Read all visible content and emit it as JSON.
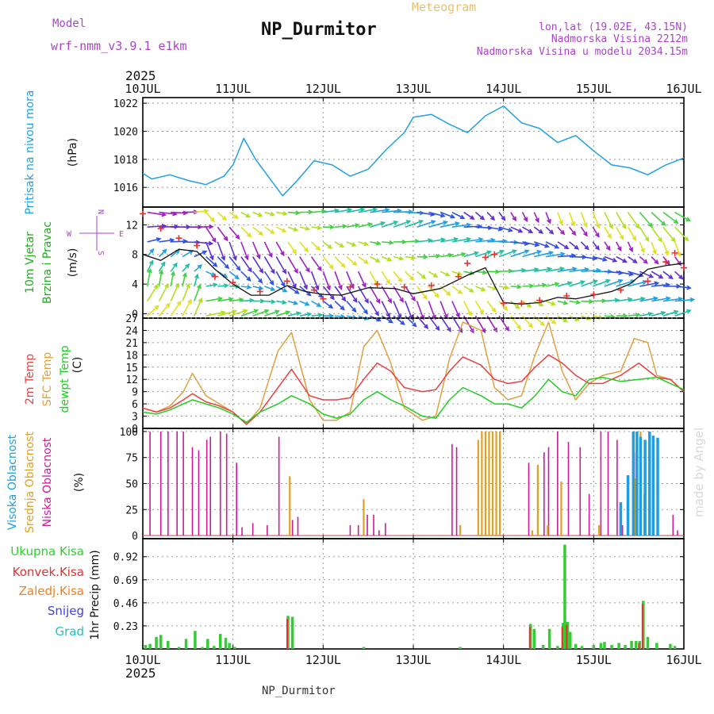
{
  "header": {
    "model_label": "Model",
    "model_name": "wrf-nmm_v3.9.1 e1km",
    "product": "Meteogram",
    "station": "NP_Durmitor",
    "lonlat": "lon,lat (19.02E, 43.15N)",
    "altitude": "Nadmorska Visina 2212m",
    "model_altitude": "Nadmorska Visina u modelu 2034.15m",
    "year": "2025",
    "footer_station": "NP_Durmitor",
    "credit": "made by Angel"
  },
  "colors": {
    "pressure": "#1ea0e6",
    "precip": "#33cc33",
    "convective": "#e83030",
    "frozen": "#f08020",
    "snow": "#4040e0",
    "hail": "#20c0c0",
    "low_cloud": "#cc1a99",
    "mid_cloud": "#e0a020",
    "high_cloud": "#1e9ee0",
    "temp_2m": "#e84040",
    "sfc_temp": "#e0a040",
    "dewpoint": "#22cc22",
    "wind_label": "#22aa22",
    "gust": "#e83030",
    "grid": "#999999"
  },
  "chart_data": [
    {
      "type": "line",
      "panel": "pressure",
      "ylabel": [
        "Pritisak na nivou mora",
        "(hPa)"
      ],
      "ylim": [
        1014.6,
        1022.4
      ],
      "yticks": [
        "1016",
        "1018",
        "1020",
        "1022"
      ],
      "xlim": [
        0,
        6
      ],
      "xticks": [
        "10JUL",
        "11JUL",
        "12JUL",
        "13JUL",
        "14JUL",
        "15JUL",
        "16JUL"
      ],
      "grid": true,
      "series": [
        {
          "x": [
            0,
            0.1,
            0.3,
            0.5,
            0.7,
            0.9,
            1.0,
            1.12,
            1.25,
            1.4,
            1.55,
            1.7,
            1.9,
            2.1,
            2.3,
            2.5,
            2.7,
            2.9,
            3.0,
            3.2,
            3.4,
            3.6,
            3.8,
            4.0,
            4.2,
            4.4,
            4.6,
            4.8,
            5.0,
            5.2,
            5.4,
            5.6,
            5.8,
            6.0
          ],
          "y": [
            1017.0,
            1016.6,
            1016.9,
            1016.5,
            1016.2,
            1016.8,
            1017.6,
            1019.5,
            1018.0,
            1016.7,
            1015.4,
            1016.4,
            1017.9,
            1017.6,
            1016.8,
            1017.3,
            1018.7,
            1019.9,
            1021.0,
            1021.2,
            1020.5,
            1019.9,
            1021.1,
            1021.8,
            1020.6,
            1020.2,
            1019.2,
            1019.7,
            1018.6,
            1017.6,
            1017.4,
            1016.9,
            1017.6,
            1018.1
          ]
        }
      ]
    },
    {
      "type": "line",
      "panel": "wind",
      "ylabel": [
        "10m Vjetar",
        "Brzina i Pravac",
        "(m/s)"
      ],
      "compass": [
        "N",
        "W",
        "E",
        "S"
      ],
      "ylim": [
        -0.6,
        14.4
      ],
      "yticks": [
        "0",
        "4",
        "8",
        "12"
      ],
      "xlim": [
        0,
        6
      ],
      "grid": true,
      "series": [
        {
          "name": "wind speed",
          "x": [
            0,
            0.2,
            0.4,
            0.6,
            0.8,
            1.0,
            1.2,
            1.4,
            1.6,
            1.8,
            2.0,
            2.2,
            2.5,
            2.8,
            3.0,
            3.3,
            3.6,
            3.8,
            4.0,
            4.2,
            4.4,
            4.6,
            4.8,
            5.0,
            5.2,
            5.4,
            5.6,
            5.8,
            6.0
          ],
          "y": [
            8.0,
            7.2,
            8.7,
            8.4,
            6.0,
            4.0,
            2.5,
            2.5,
            3.8,
            3.0,
            2.6,
            2.5,
            3.5,
            3.4,
            2.7,
            3.4,
            5.2,
            6.2,
            1.5,
            1.3,
            1.5,
            2.2,
            2.0,
            2.5,
            3.0,
            4.0,
            6.0,
            6.5,
            6.8
          ]
        },
        {
          "name": "gusts",
          "x": [
            0,
            0.2,
            0.4,
            0.6,
            0.8,
            1.0,
            1.3,
            1.6,
            1.9,
            2.0,
            2.3,
            2.6,
            2.9,
            3.2,
            3.5,
            3.6,
            3.8,
            3.9,
            4.0,
            4.2,
            4.4,
            4.7,
            5.0,
            5.3,
            5.6,
            5.8,
            5.9,
            6.0
          ],
          "y": [
            13.5,
            11.5,
            10.2,
            9.2,
            5.0,
            4.2,
            3.0,
            4.4,
            3.2,
            2.0,
            3.6,
            4.0,
            3.6,
            3.8,
            5.0,
            6.8,
            7.6,
            8.0,
            1.4,
            1.4,
            1.8,
            2.4,
            2.6,
            3.2,
            4.4,
            7.0,
            8.2,
            6.2
          ]
        }
      ]
    },
    {
      "type": "line",
      "panel": "temperature",
      "ylabel": [
        "2m Temp",
        "SFC Temp",
        "dewpt Temp",
        "(C)"
      ],
      "ylim": [
        0,
        27
      ],
      "yticks": [
        "0",
        "3",
        "6",
        "9",
        "12",
        "15",
        "18",
        "21",
        "24",
        "27"
      ],
      "xlim": [
        0,
        6
      ],
      "grid": true,
      "series": [
        {
          "name": "2m Temp",
          "x": [
            0,
            0.15,
            0.3,
            0.45,
            0.55,
            0.7,
            0.85,
            1.0,
            1.15,
            1.3,
            1.5,
            1.65,
            1.85,
            2.0,
            2.15,
            2.3,
            2.45,
            2.6,
            2.75,
            2.9,
            3.1,
            3.25,
            3.4,
            3.55,
            3.75,
            3.9,
            4.05,
            4.2,
            4.35,
            4.5,
            4.65,
            4.8,
            4.95,
            5.1,
            5.3,
            5.5,
            5.7,
            5.85,
            6.0
          ],
          "y": [
            5,
            4,
            5,
            7,
            8.5,
            6.5,
            5.5,
            4,
            1,
            4,
            10,
            14.5,
            8,
            7,
            7,
            7.5,
            12,
            16,
            14,
            10,
            9,
            9.5,
            14,
            17.5,
            15.5,
            12,
            11,
            11.5,
            15,
            18,
            16,
            13,
            11,
            11,
            13,
            16,
            12.5,
            12,
            9
          ]
        },
        {
          "name": "SFC Temp",
          "x": [
            0,
            0.15,
            0.3,
            0.45,
            0.55,
            0.7,
            0.85,
            1.0,
            1.15,
            1.3,
            1.5,
            1.65,
            1.85,
            2.0,
            2.15,
            2.3,
            2.45,
            2.6,
            2.75,
            2.9,
            3.1,
            3.25,
            3.4,
            3.55,
            3.75,
            3.9,
            4.05,
            4.2,
            4.35,
            4.5,
            4.65,
            4.8,
            4.95,
            5.1,
            5.3,
            5.45,
            5.6,
            5.7,
            5.85,
            6.0
          ],
          "y": [
            5,
            4,
            5.5,
            9,
            13.5,
            8,
            6,
            4,
            1,
            5,
            19,
            23.5,
            7,
            2,
            2,
            4,
            20,
            24,
            16,
            5,
            2,
            3,
            17,
            26,
            24,
            10,
            7,
            8,
            18,
            26,
            14,
            7,
            11,
            13,
            14,
            22,
            21,
            13,
            12,
            9
          ]
        },
        {
          "name": "dewpt Temp",
          "x": [
            0,
            0.15,
            0.3,
            0.45,
            0.55,
            0.7,
            0.85,
            1.0,
            1.15,
            1.3,
            1.5,
            1.65,
            1.85,
            2.0,
            2.15,
            2.3,
            2.45,
            2.6,
            2.75,
            2.9,
            3.1,
            3.25,
            3.4,
            3.55,
            3.75,
            3.9,
            4.05,
            4.2,
            4.35,
            4.5,
            4.65,
            4.8,
            4.95,
            5.1,
            5.3,
            5.5,
            5.7,
            5.85,
            6.0
          ],
          "y": [
            4,
            3.5,
            4.5,
            6,
            7,
            6,
            5,
            3.5,
            1.5,
            4,
            6,
            8,
            6,
            3.5,
            2.5,
            3.5,
            7,
            9,
            7,
            5.5,
            3,
            2.5,
            7,
            10,
            8,
            6,
            6,
            5,
            8,
            12,
            9,
            8,
            12,
            12.5,
            11.5,
            12,
            12.5,
            11,
            9.5
          ]
        }
      ]
    },
    {
      "type": "bar",
      "panel": "cloud",
      "ylabel": [
        "Visoka Oblacnost",
        "Srednja Oblacnost",
        "Niska Oblacnost",
        "(%)"
      ],
      "ylim": [
        -3,
        103
      ],
      "yticks": [
        "0",
        "25",
        "50",
        "75",
        "100"
      ],
      "xlim": [
        0,
        6
      ],
      "grid": true,
      "series": [
        {
          "name": "Niska Oblacnost",
          "x": [
            0.08,
            0.2,
            0.28,
            0.38,
            0.45,
            0.55,
            0.62,
            0.71,
            0.75,
            0.86,
            0.93,
            1.04,
            1.1,
            1.22,
            1.38,
            1.51,
            1.66,
            1.72,
            2.3,
            2.39,
            2.49,
            2.56,
            2.62,
            2.69,
            3.43,
            3.48,
            4.28,
            4.45,
            4.5,
            4.6,
            4.72,
            4.85,
            4.95,
            5.08,
            5.16,
            5.26,
            5.32,
            5.45,
            5.88,
            5.93
          ],
          "y": [
            100,
            100,
            100,
            100,
            100,
            85,
            82,
            92,
            95,
            100,
            98,
            70,
            8,
            12,
            10,
            95,
            15,
            18,
            10,
            10,
            20,
            20,
            5,
            12,
            88,
            85,
            70,
            80,
            85,
            100,
            90,
            85,
            40,
            100,
            100,
            92,
            10,
            80,
            20,
            5
          ]
        },
        {
          "name": "Srednja Oblacnost",
          "x": [
            1.63,
            2.45,
            3.52,
            3.72,
            3.76,
            3.8,
            3.84,
            3.88,
            3.92,
            3.96,
            4.32,
            4.38,
            4.49,
            4.64,
            5.06,
            5.46,
            5.52,
            5.56
          ],
          "y": [
            57,
            35,
            10,
            92,
            100,
            100,
            100,
            100,
            100,
            100,
            5,
            68,
            10,
            52,
            10,
            55,
            100,
            40
          ]
        },
        {
          "name": "Visoka Oblacnost",
          "x": [
            5.3,
            5.38,
            5.44,
            5.48,
            5.52,
            5.57,
            5.62,
            5.66,
            5.71
          ],
          "y": [
            32,
            58,
            100,
            100,
            95,
            92,
            100,
            96,
            94
          ]
        }
      ]
    },
    {
      "type": "bar",
      "panel": "precipitation",
      "ylabel": [
        "1hr Precip (mm)"
      ],
      "legend": [
        "Ukupna Kisa",
        "Konvek.Kisa",
        "Zaledj.Kisa",
        "Snijeg",
        "Grad"
      ],
      "ylim": [
        0,
        1.1
      ],
      "yticks": [
        "0.23",
        "0.46",
        "0.69",
        "0.92"
      ],
      "xlim": [
        0,
        6
      ],
      "xticks": [
        "10JUL",
        "11JUL",
        "12JUL",
        "13JUL",
        "14JUL",
        "15JUL",
        "16JUL"
      ],
      "grid": true,
      "series": [
        {
          "name": "Ukupna Kisa",
          "x": [
            0.03,
            0.08,
            0.15,
            0.2,
            0.28,
            0.4,
            0.48,
            0.58,
            0.66,
            0.72,
            0.79,
            0.86,
            0.92,
            0.96,
            1.02,
            1.61,
            1.66,
            2.45,
            3.52,
            4.3,
            4.34,
            4.44,
            4.51,
            4.6,
            4.66,
            4.68,
            4.71,
            4.74,
            4.8,
            4.87,
            5.0,
            5.08,
            5.12,
            5.2,
            5.28,
            5.35,
            5.42,
            5.47,
            5.51,
            5.55,
            5.6,
            5.7,
            5.85,
            5.9
          ],
          "y": [
            0.04,
            0.05,
            0.12,
            0.14,
            0.08,
            0.02,
            0.1,
            0.18,
            0.02,
            0.1,
            0.03,
            0.15,
            0.11,
            0.06,
            0.02,
            0.33,
            0.32,
            0.02,
            0.02,
            0.25,
            0.2,
            0.04,
            0.2,
            0.03,
            0.26,
            1.04,
            0.27,
            0.17,
            0.05,
            0.03,
            0.04,
            0.06,
            0.07,
            0.04,
            0.06,
            0.04,
            0.08,
            0.08,
            0.08,
            0.48,
            0.12,
            0.06,
            0.05,
            0.03
          ]
        },
        {
          "name": "Konvek.Kisa",
          "x": [
            1.61,
            4.3,
            4.66,
            4.71,
            5.51,
            5.55
          ],
          "y": [
            0.3,
            0.22,
            0.22,
            0.24,
            0.06,
            0.45
          ]
        }
      ]
    }
  ]
}
